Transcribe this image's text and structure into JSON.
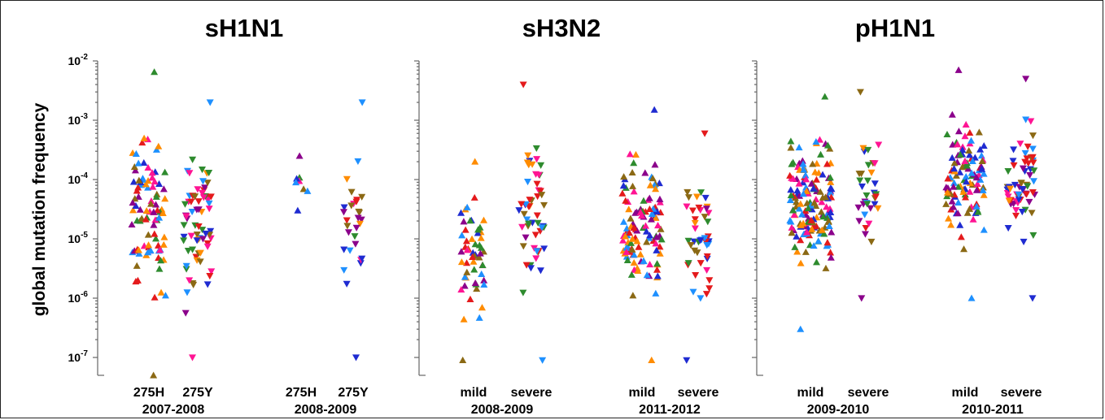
{
  "ylabel": "global mutation frequency",
  "chart_data": [
    {
      "type": "scatter",
      "title": "sH1N1",
      "ylabel": "global mutation frequency",
      "yscale": "log",
      "ylim": [
        5e-08,
        0.01
      ],
      "yticks": [
        {
          "base": "10",
          "exp": "-2"
        },
        {
          "base": "10",
          "exp": "-3"
        },
        {
          "base": "10",
          "exp": "-4"
        },
        {
          "base": "10",
          "exp": "-5"
        },
        {
          "base": "10",
          "exp": "-6"
        },
        {
          "base": "10",
          "exp": "-7"
        }
      ],
      "groups": [
        {
          "label": "2007-2008",
          "categories": [
            {
              "label": "275H",
              "marker": "up",
              "n": 95,
              "min": 5e-08,
              "max": 0.0065
            },
            {
              "label": "275Y",
              "marker": "down",
              "n": 70,
              "min": 1e-07,
              "max": 0.002
            }
          ]
        },
        {
          "label": "2008-2009",
          "categories": [
            {
              "label": "275H",
              "marker": "up",
              "n": 8,
              "min": 3e-05,
              "max": 0.00025
            },
            {
              "label": "275Y",
              "marker": "down",
              "n": 30,
              "min": 1e-07,
              "max": 0.002
            }
          ]
        }
      ]
    },
    {
      "type": "scatter",
      "title": "sH3N2",
      "yscale": "log",
      "ylim": [
        5e-08,
        0.01
      ],
      "groups": [
        {
          "label": "2008-2009",
          "categories": [
            {
              "label": "mild",
              "marker": "up",
              "n": 55,
              "min": 9e-08,
              "max": 0.0002
            },
            {
              "label": "severe",
              "marker": "down",
              "n": 55,
              "min": 9e-08,
              "max": 0.004
            }
          ]
        },
        {
          "label": "2011-2012",
          "categories": [
            {
              "label": "mild",
              "marker": "up",
              "n": 120,
              "min": 9e-08,
              "max": 0.0015
            },
            {
              "label": "severe",
              "marker": "down",
              "n": 45,
              "min": 9e-08,
              "max": 0.0006
            }
          ]
        }
      ]
    },
    {
      "type": "scatter",
      "title": "pH1N1",
      "yscale": "log",
      "ylim": [
        5e-08,
        0.01
      ],
      "groups": [
        {
          "label": "2009-2010",
          "categories": [
            {
              "label": "mild",
              "marker": "up",
              "n": 160,
              "min": 3e-07,
              "max": 0.0025
            },
            {
              "label": "severe",
              "marker": "down",
              "n": 35,
              "min": 1e-06,
              "max": 0.003
            }
          ]
        },
        {
          "label": "2010-2011",
          "categories": [
            {
              "label": "mild",
              "marker": "up",
              "n": 110,
              "min": 1e-06,
              "max": 0.007
            },
            {
              "label": "severe",
              "marker": "down",
              "n": 65,
              "min": 1e-06,
              "max": 0.005
            }
          ]
        }
      ]
    }
  ],
  "colors": [
    "#e41a1c",
    "#1f2bd1",
    "#2e8b2e",
    "#ff8c00",
    "#8b008b",
    "#ff1493",
    "#1e90ff",
    "#8b6914"
  ]
}
